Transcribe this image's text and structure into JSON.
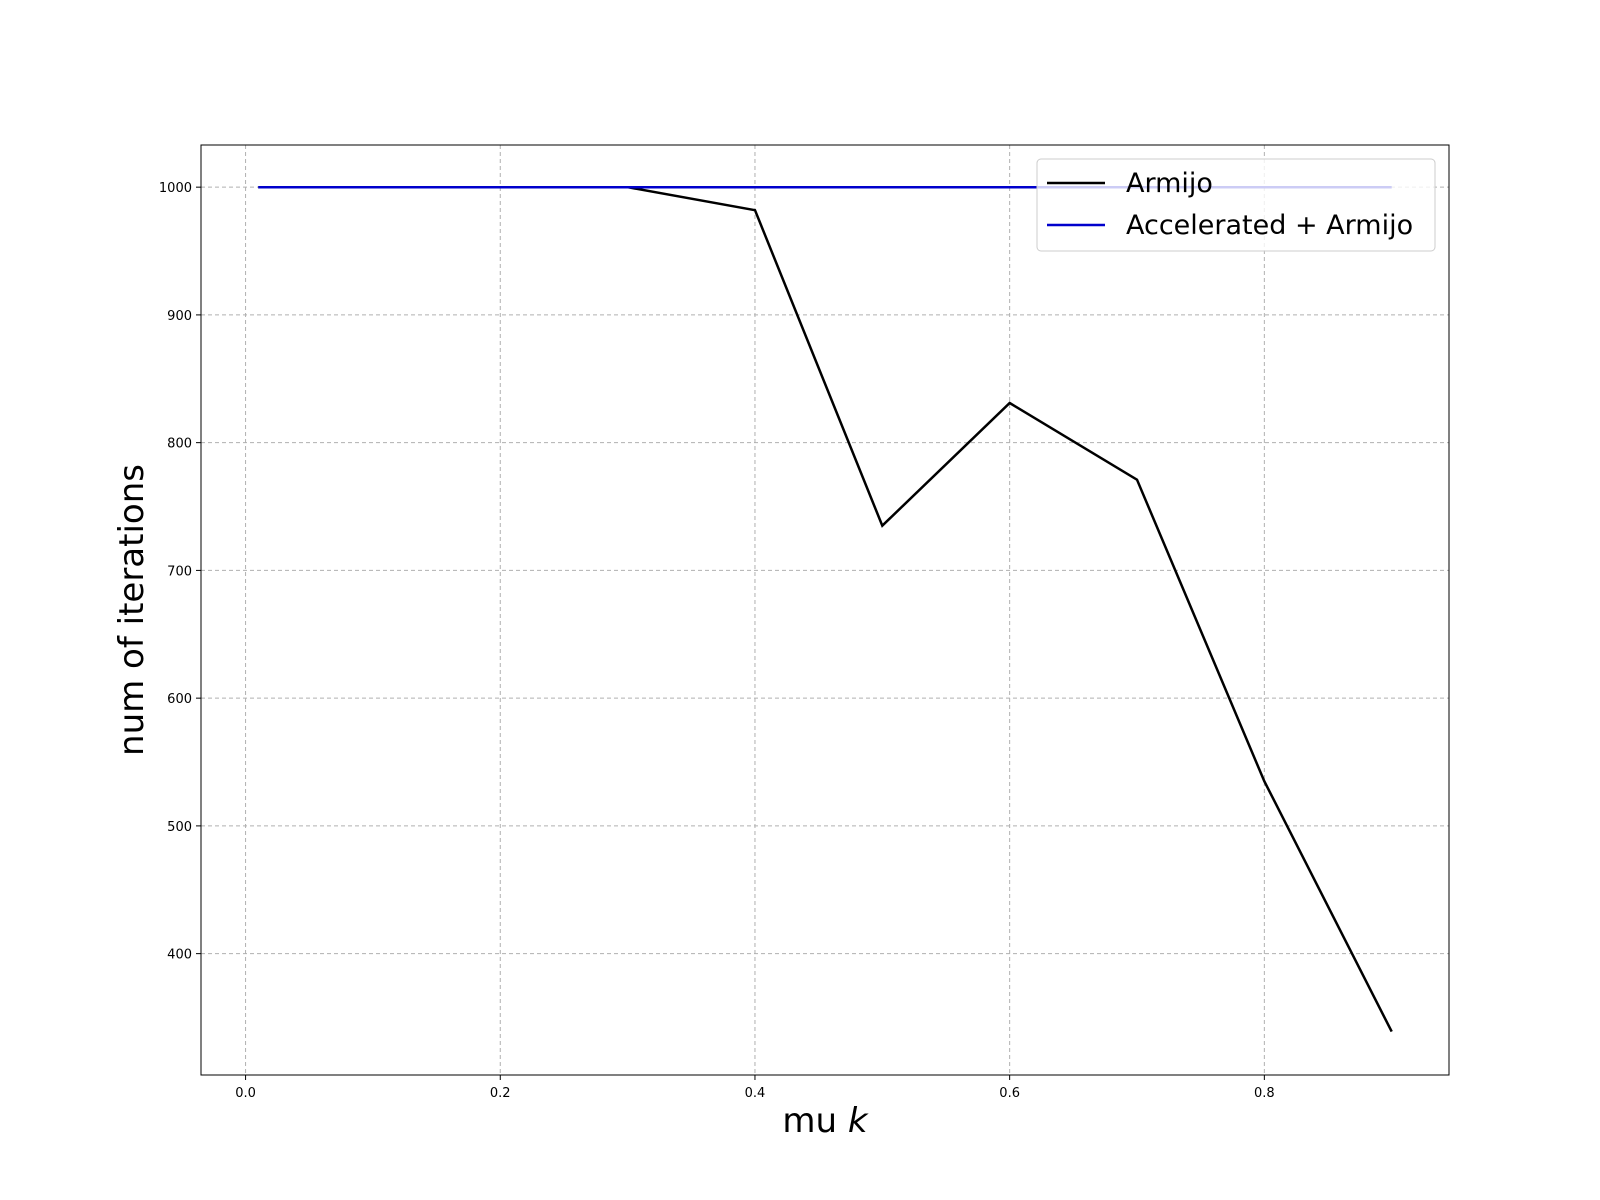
{
  "chart_data": {
    "type": "line",
    "title": "",
    "xlabel": "mu",
    "xlabel_italic": "k",
    "ylabel": "num of iterations",
    "xlim": [
      -0.035,
      0.945
    ],
    "ylim": [
      305,
      1033
    ],
    "x_ticks": [
      0.0,
      0.2,
      0.4,
      0.6,
      0.8
    ],
    "x_tick_labels": [
      "0.0",
      "0.2",
      "0.4",
      "0.6",
      "0.8"
    ],
    "y_ticks": [
      400,
      500,
      600,
      700,
      800,
      900,
      1000
    ],
    "y_tick_labels": [
      "400",
      "500",
      "600",
      "700",
      "800",
      "900",
      "1000"
    ],
    "grid": true,
    "legend_position": "top-right",
    "series": [
      {
        "name": "Armijo",
        "color": "#000000",
        "x": [
          0.01,
          0.1,
          0.2,
          0.3,
          0.4,
          0.5,
          0.6,
          0.7,
          0.8,
          0.9
        ],
        "y": [
          1000,
          1000,
          1000,
          1000,
          982,
          735,
          831,
          771,
          535,
          339
        ]
      },
      {
        "name": "Accelerated + Armijo",
        "color": "#0000cc",
        "x": [
          0.01,
          0.1,
          0.2,
          0.3,
          0.4,
          0.5,
          0.6,
          0.7,
          0.8,
          0.9
        ],
        "y": [
          1000,
          1000,
          1000,
          1000,
          1000,
          1000,
          1000,
          1000,
          1000,
          1000
        ]
      }
    ]
  }
}
